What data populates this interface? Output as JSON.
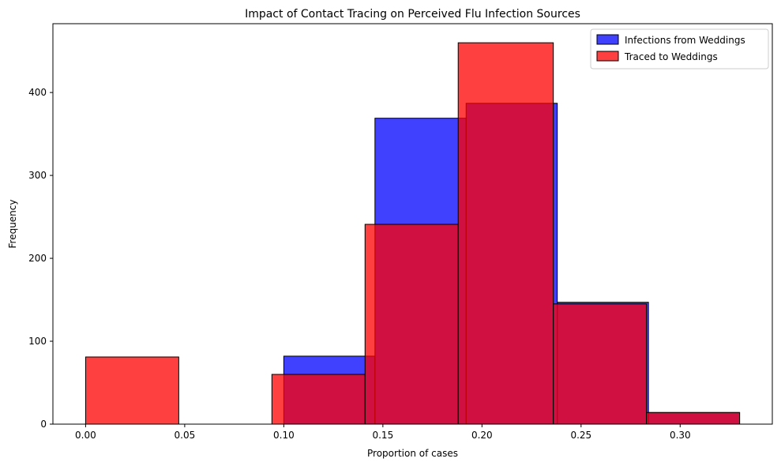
{
  "chart_data": {
    "type": "bar",
    "title": "Impact of Contact Tracing on Perceived Flu Infection Sources",
    "xlabel": "Proportion of cases",
    "ylabel": "Frequency",
    "xlim": [
      -0.0165,
      0.3465
    ],
    "ylim": [
      0,
      483
    ],
    "x_ticks": [
      0.0,
      0.05,
      0.1,
      0.15,
      0.2,
      0.25,
      0.3
    ],
    "x_tick_labels": [
      "0.00",
      "0.05",
      "0.10",
      "0.15",
      "0.20",
      "0.25",
      "0.30"
    ],
    "y_ticks": [
      0,
      100,
      200,
      300,
      400
    ],
    "y_tick_labels": [
      "0",
      "100",
      "200",
      "300",
      "400"
    ],
    "grid": false,
    "legend_position": "top-right",
    "series": [
      {
        "name": "Infections from Weddings",
        "color": "#0000ff",
        "bins": [
          {
            "x0": 0.1,
            "x1": 0.146,
            "value": 82
          },
          {
            "x0": 0.146,
            "x1": 0.192,
            "value": 369
          },
          {
            "x0": 0.192,
            "x1": 0.238,
            "value": 387
          },
          {
            "x0": 0.238,
            "x1": 0.284,
            "value": 147
          },
          {
            "x0": 0.284,
            "x1": 0.33,
            "value": 14
          }
        ]
      },
      {
        "name": "Traced to Weddings",
        "color": "#ff0000",
        "bins": [
          {
            "x0": 0.0,
            "x1": 0.047,
            "value": 81
          },
          {
            "x0": 0.047,
            "x1": 0.094,
            "value": 0
          },
          {
            "x0": 0.094,
            "x1": 0.141,
            "value": 60
          },
          {
            "x0": 0.141,
            "x1": 0.188,
            "value": 241
          },
          {
            "x0": 0.188,
            "x1": 0.236,
            "value": 460
          },
          {
            "x0": 0.236,
            "x1": 0.283,
            "value": 145
          },
          {
            "x0": 0.283,
            "x1": 0.33,
            "value": 14
          }
        ]
      }
    ]
  }
}
